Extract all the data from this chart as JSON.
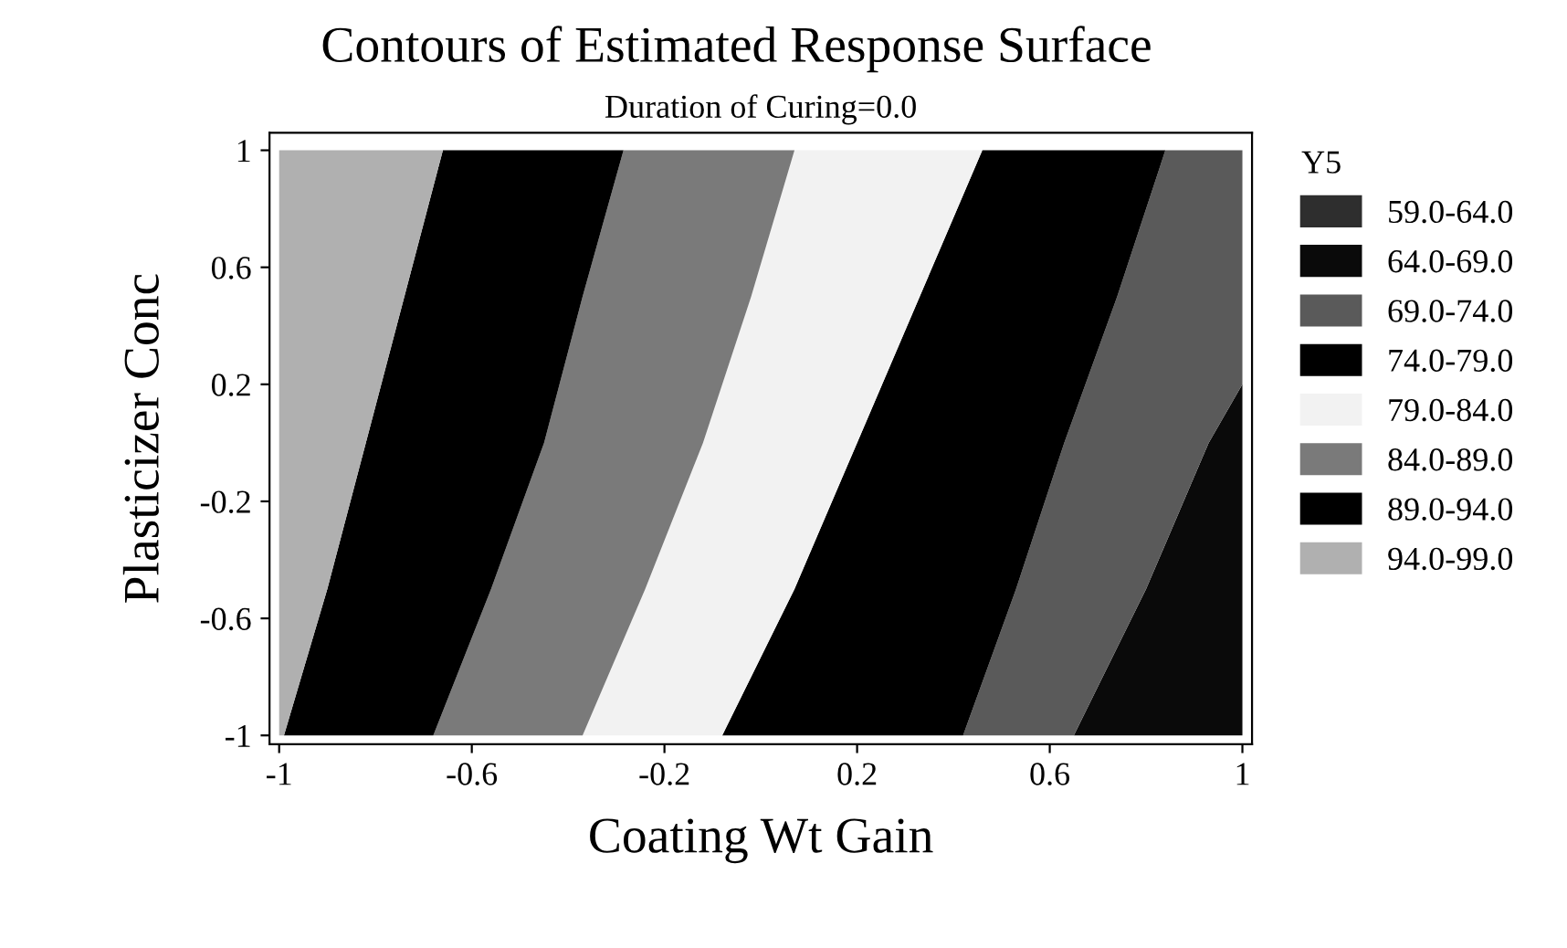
{
  "chart_data": {
    "type": "area",
    "title": "Contours of Estimated Response Surface",
    "subtitle": "Duration of Curing=0.0",
    "xlabel": "Coating Wt Gain",
    "ylabel": "Plasticizer Conc",
    "legend_title": "Y5",
    "legend": "right",
    "xlim": [
      -1.02,
      1.02
    ],
    "ylim": [
      -1.03,
      1.06
    ],
    "xticks": [
      -1,
      -0.6,
      -0.2,
      0.2,
      0.6,
      1
    ],
    "yticks": [
      -1,
      -0.6,
      -0.2,
      0.2,
      0.6,
      1
    ],
    "grid": false,
    "series": [
      {
        "name": "59.0-64.0",
        "color": "#2e2e2e"
      },
      {
        "name": "64.0-69.0",
        "color": "#0a0a0a",
        "x": [
          0.65,
          0.8,
          0.93,
          1,
          1
        ],
        "values": [
          -1,
          -0.5,
          0,
          0.2,
          -1
        ]
      },
      {
        "name": "69.0-74.0",
        "color": "#5a5a5a",
        "x": [
          0.42,
          0.53,
          0.63,
          0.74,
          0.84,
          1,
          1,
          0.93,
          0.8,
          0.65
        ],
        "values": [
          -1,
          -0.5,
          0,
          0.5,
          1,
          1,
          0.2,
          0,
          -0.5,
          -1
        ]
      },
      {
        "name": "74.0-79.0",
        "color": "#000000",
        "x": [
          -0.08,
          0.07,
          0.2,
          0.33,
          0.46,
          0.84,
          0.74,
          0.63,
          0.53,
          0.42
        ],
        "values": [
          -1,
          -0.5,
          0,
          0.5,
          1,
          1,
          0.5,
          0,
          -0.5,
          -1
        ]
      },
      {
        "name": "79.0-84.0",
        "color": "#f2f2f2",
        "x": [
          -0.37,
          -0.24,
          -0.12,
          -0.02,
          0.07,
          0.46,
          0.33,
          0.2,
          0.07,
          -0.08
        ],
        "values": [
          -1,
          -0.5,
          0,
          0.5,
          1,
          1,
          0.5,
          0,
          -0.5,
          -1
        ]
      },
      {
        "name": "84.0-89.0",
        "color": "#7a7a7a",
        "x": [
          -0.68,
          -0.56,
          -0.45,
          -0.37,
          -0.285,
          0.07,
          -0.02,
          -0.12,
          -0.24,
          -0.37
        ],
        "values": [
          -1,
          -0.5,
          0,
          0.5,
          1,
          1,
          0.5,
          0,
          -0.5,
          -1
        ]
      },
      {
        "name": "89.0-94.0",
        "color": "#000000",
        "x": [
          -0.99,
          -0.9,
          -0.82,
          -0.74,
          -0.66,
          -0.285,
          -0.37,
          -0.45,
          -0.56,
          -0.68
        ],
        "values": [
          -1,
          -0.5,
          0,
          0.5,
          1,
          1,
          0.5,
          0,
          -0.5,
          -1
        ]
      },
      {
        "name": "94.0-99.0",
        "color": "#b0b0b0",
        "x": [
          -1,
          -0.99,
          -0.9,
          -0.82,
          -0.74,
          -0.66,
          -1
        ],
        "values": [
          -1,
          -1,
          -0.5,
          0,
          0.5,
          1,
          1
        ]
      }
    ]
  }
}
